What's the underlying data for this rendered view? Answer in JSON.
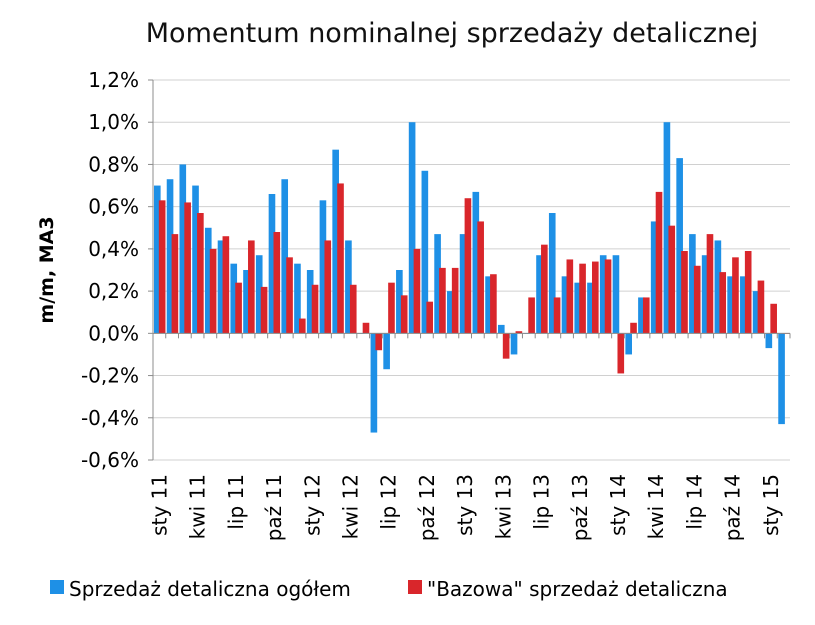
{
  "chart_data": {
    "type": "bar",
    "title": "Momentum nominalnej sprzedaży detalicznej",
    "ylabel": "m/m, MA3",
    "xlabel": "",
    "ylim": [
      -0.6,
      1.2
    ],
    "y_ticks": [
      "-0,6%",
      "-0,4%",
      "-0,2%",
      "0,0%",
      "0,2%",
      "0,4%",
      "0,6%",
      "0,8%",
      "1,0%",
      "1,2%"
    ],
    "y_tick_values": [
      -0.6,
      -0.4,
      -0.2,
      0.0,
      0.2,
      0.4,
      0.6,
      0.8,
      1.0,
      1.2
    ],
    "grid": true,
    "legend_position": "bottom",
    "x_tick_labels": [
      {
        "index": 0,
        "label": "sty 11"
      },
      {
        "index": 3,
        "label": "kwi 11"
      },
      {
        "index": 6,
        "label": "lip 11"
      },
      {
        "index": 9,
        "label": "paź 11"
      },
      {
        "index": 12,
        "label": "sty 12"
      },
      {
        "index": 15,
        "label": "kwi 12"
      },
      {
        "index": 18,
        "label": "lip 12"
      },
      {
        "index": 21,
        "label": "paź 12"
      },
      {
        "index": 24,
        "label": "sty 13"
      },
      {
        "index": 27,
        "label": "kwi 13"
      },
      {
        "index": 30,
        "label": "lip 13"
      },
      {
        "index": 33,
        "label": "paź 13"
      },
      {
        "index": 36,
        "label": "sty 14"
      },
      {
        "index": 39,
        "label": "kwi 14"
      },
      {
        "index": 42,
        "label": "lip 14"
      },
      {
        "index": 45,
        "label": "paź 14"
      },
      {
        "index": 48,
        "label": "sty 15"
      }
    ],
    "series": [
      {
        "name": "Sprzedaż detaliczna ogółem",
        "color": "#1e90e6",
        "values": [
          0.7,
          0.73,
          0.8,
          0.7,
          0.5,
          0.44,
          0.33,
          0.3,
          0.37,
          0.66,
          0.73,
          0.33,
          0.3,
          0.63,
          0.87,
          0.44,
          0.0,
          -0.47,
          -0.17,
          0.3,
          1.0,
          0.77,
          0.47,
          0.2,
          0.47,
          0.67,
          0.27,
          0.04,
          -0.1,
          0.0,
          0.37,
          0.57,
          0.27,
          0.24,
          0.24,
          0.37,
          0.37,
          -0.1,
          0.17,
          0.53,
          1.0,
          0.83,
          0.47,
          0.37,
          0.44,
          0.27,
          0.27,
          0.2,
          -0.07,
          -0.43
        ]
      },
      {
        "name": "\"Bazowa\" sprzedaż detaliczna",
        "color": "#d9262b",
        "values": [
          0.63,
          0.47,
          0.62,
          0.57,
          0.4,
          0.46,
          0.24,
          0.44,
          0.22,
          0.48,
          0.36,
          0.07,
          0.23,
          0.44,
          0.71,
          0.23,
          0.05,
          -0.08,
          0.24,
          0.18,
          0.4,
          0.15,
          0.31,
          0.31,
          0.64,
          0.53,
          0.28,
          -0.12,
          0.01,
          0.17,
          0.42,
          0.17,
          0.35,
          0.33,
          0.34,
          0.35,
          -0.19,
          0.05,
          0.17,
          0.67,
          0.51,
          0.39,
          0.32,
          0.47,
          0.29,
          0.36,
          0.39,
          0.25,
          0.14,
          0.0
        ]
      }
    ]
  }
}
